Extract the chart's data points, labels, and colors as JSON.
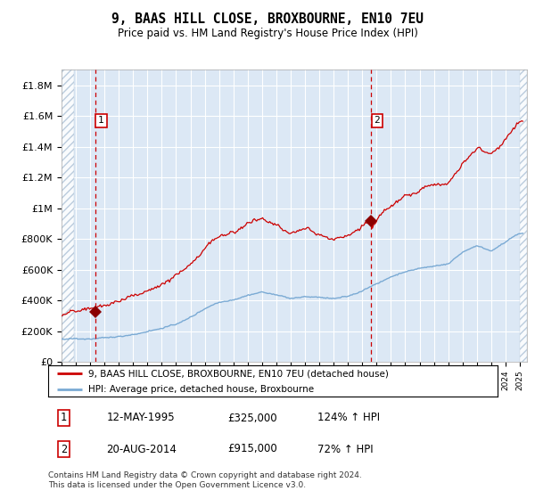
{
  "title": "9, BAAS HILL CLOSE, BROXBOURNE, EN10 7EU",
  "subtitle": "Price paid vs. HM Land Registry's House Price Index (HPI)",
  "legend_line1": "9, BAAS HILL CLOSE, BROXBOURNE, EN10 7EU (detached house)",
  "legend_line2": "HPI: Average price, detached house, Broxbourne",
  "transaction1_label": "1",
  "transaction1_date": "12-MAY-1995",
  "transaction1_price": "£325,000",
  "transaction1_hpi": "124% ↑ HPI",
  "transaction1_year": 1995.36,
  "transaction1_value": 325000,
  "transaction2_label": "2",
  "transaction2_date": "20-AUG-2014",
  "transaction2_price": "£915,000",
  "transaction2_hpi": "72% ↑ HPI",
  "transaction2_year": 2014.63,
  "transaction2_value": 915000,
  "hpi_color": "#7aaad4",
  "price_color": "#cc0000",
  "marker_color": "#8b0000",
  "vline_color": "#cc0000",
  "background_color": "#dce8f5",
  "ylim_min": 0,
  "ylim_max": 1900000,
  "xmin": 1993,
  "xmax": 2025.5,
  "footer": "Contains HM Land Registry data © Crown copyright and database right 2024.\nThis data is licensed under the Open Government Licence v3.0.",
  "yticks": [
    0,
    200000,
    400000,
    600000,
    800000,
    1000000,
    1200000,
    1400000,
    1600000,
    1800000
  ],
  "ytick_labels": [
    "£0",
    "£200K",
    "£400K",
    "£600K",
    "£800K",
    "£1M",
    "£1.2M",
    "£1.4M",
    "£1.6M",
    "£1.8M"
  ]
}
